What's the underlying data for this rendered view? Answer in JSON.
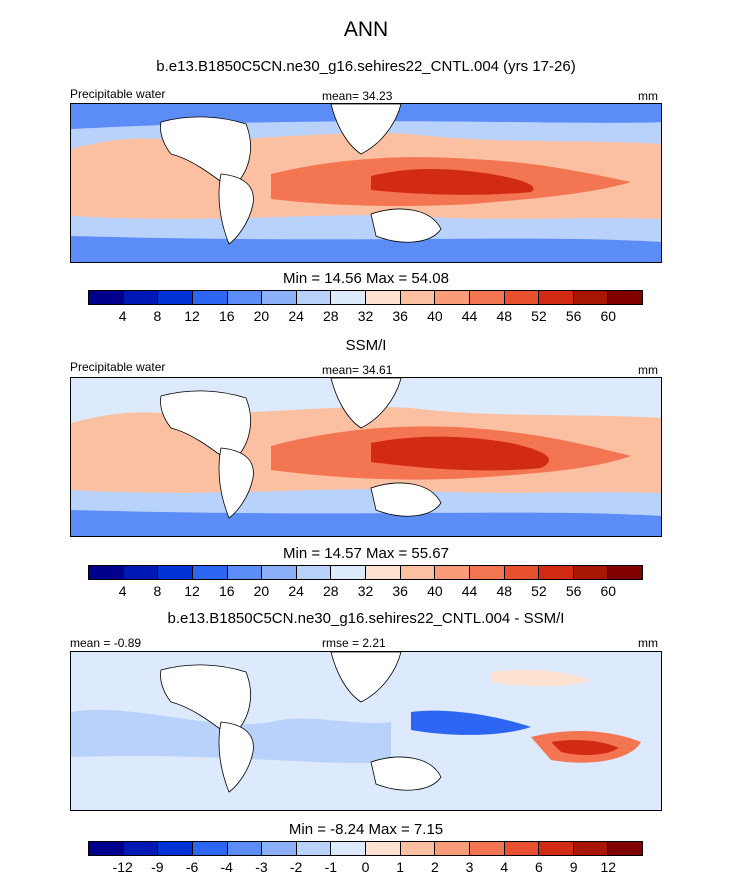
{
  "page_title": "ANN",
  "model_title": "b.e13.B1850C5CN.ne30_g16.sehires22_CNTL.004 (yrs 17-26)",
  "obs_title": "SSM/I",
  "diff_title": "b.e13.B1850C5CN.ne30_g16.sehires22_CNTL.004 - SSM/I",
  "colors": {
    "abs_scale": [
      "#00008c",
      "#0019b4",
      "#0033d6",
      "#2e66f4",
      "#5c8cf6",
      "#8cb0f8",
      "#b9d2fb",
      "#dde9fc",
      "#fde2d1",
      "#fbc0a2",
      "#f89c79",
      "#f47552",
      "#e9502f",
      "#d12b14",
      "#aa1606",
      "#800000"
    ],
    "diff_scale": [
      "#00008c",
      "#0019b4",
      "#0033d6",
      "#2e66f4",
      "#5c8cf6",
      "#8cb0f8",
      "#b9d2fb",
      "#dde9fc",
      "#fde2d1",
      "#fbc0a2",
      "#f89c79",
      "#f47552",
      "#e9502f",
      "#d12b14",
      "#aa1606",
      "#800000"
    ],
    "land": "#ffffff",
    "coast": "#000000"
  },
  "chart_data": [
    {
      "type": "heatmap",
      "panel": "model",
      "variable_label": "Precipitable water",
      "mean_label": "mean=  34.23",
      "units": "mm",
      "minmax_label": "Min =  14.56 Max =  54.08",
      "colorbar_ticks": [
        "4",
        "8",
        "12",
        "16",
        "20",
        "24",
        "28",
        "32",
        "36",
        "40",
        "44",
        "48",
        "52",
        "56",
        "60"
      ],
      "min": 14.56,
      "max": 54.08,
      "mean": 34.23
    },
    {
      "type": "heatmap",
      "panel": "observations",
      "variable_label": "Precipitable water",
      "mean_label": "mean=  34.61",
      "units": "mm",
      "minmax_label": "Min =  14.57 Max =  55.67",
      "colorbar_ticks": [
        "4",
        "8",
        "12",
        "16",
        "20",
        "24",
        "28",
        "32",
        "36",
        "40",
        "44",
        "48",
        "52",
        "56",
        "60"
      ],
      "min": 14.57,
      "max": 55.67,
      "mean": 34.61
    },
    {
      "type": "heatmap",
      "panel": "difference",
      "mean_label": "mean =  -0.89",
      "rmse_label": "rmse =   2.21",
      "units": "mm",
      "minmax_label": "Min =  -8.24 Max =   7.15",
      "colorbar_ticks": [
        "-12",
        "-9",
        "-6",
        "-4",
        "-3",
        "-2",
        "-1",
        "0",
        "1",
        "2",
        "3",
        "4",
        "6",
        "9",
        "12"
      ],
      "min": -8.24,
      "max": 7.15,
      "mean": -0.89,
      "rmse": 2.21
    }
  ]
}
